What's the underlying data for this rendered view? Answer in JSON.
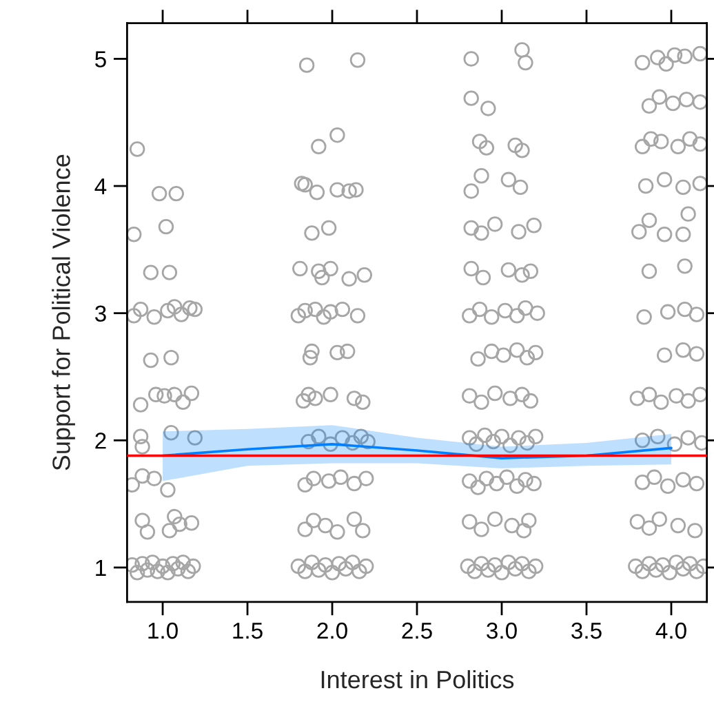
{
  "chart_data": {
    "type": "scatter",
    "xlabel": "Interest in Politics",
    "ylabel": "Support for Political Violence",
    "xlim": [
      0.79,
      4.21
    ],
    "ylim": [
      0.73,
      5.28
    ],
    "xticks": [
      {
        "value": 1,
        "label": "1.0"
      },
      {
        "value": 1.5,
        "label": "1.5"
      },
      {
        "value": 2,
        "label": "2.0"
      },
      {
        "value": 2.5,
        "label": "2.5"
      },
      {
        "value": 3,
        "label": "3.0"
      },
      {
        "value": 3.5,
        "label": "3.5"
      },
      {
        "value": 4,
        "label": "4.0"
      }
    ],
    "yticks": [
      1,
      2,
      3,
      4,
      5
    ],
    "grid": false,
    "legend": false,
    "ref_lines": [
      {
        "axis": "y",
        "value": 1.88,
        "color": "#ff0000"
      }
    ],
    "series": [
      {
        "marker": "circle",
        "color": "#a6a6a6",
        "x": [
          0.85,
          0.98,
          1.08,
          0.83,
          1.02,
          0.93,
          1.04,
          0.83,
          0.87,
          0.95,
          1.03,
          1.07,
          1.11,
          1.16,
          1.19,
          0.93,
          1.05,
          0.87,
          0.96,
          1.01,
          1.07,
          1.12,
          1.17,
          0.87,
          0.88,
          1.05,
          1.19,
          0.82,
          0.88,
          0.95,
          1.03,
          0.88,
          0.91,
          1.07,
          1.17,
          1.04,
          1.1,
          0.82,
          0.85,
          0.88,
          0.91,
          0.94,
          0.97,
          1.0,
          1.03,
          1.06,
          1.09,
          1.12,
          1.15,
          1.18,
          1.85,
          2.15,
          1.92,
          2.03,
          1.82,
          1.84,
          1.91,
          2.03,
          2.1,
          2.14,
          1.88,
          1.98,
          1.81,
          1.92,
          1.94,
          1.99,
          2.1,
          2.19,
          1.8,
          1.84,
          1.9,
          1.95,
          1.99,
          2.06,
          2.15,
          1.87,
          1.88,
          2.03,
          2.09,
          1.83,
          1.86,
          1.9,
          1.99,
          2.13,
          2.18,
          1.86,
          1.92,
          1.99,
          2.06,
          2.12,
          2.17,
          2.21,
          1.84,
          1.89,
          1.98,
          2.05,
          2.13,
          2.2,
          1.84,
          1.89,
          1.96,
          2.03,
          2.13,
          2.18,
          1.8,
          1.84,
          1.88,
          1.92,
          1.96,
          2.0,
          2.04,
          2.08,
          2.12,
          2.16,
          2.2,
          2.82,
          3.12,
          3.14,
          2.82,
          2.92,
          2.87,
          2.91,
          3.08,
          3.12,
          2.82,
          2.88,
          3.04,
          3.11,
          2.82,
          2.88,
          2.96,
          3.1,
          3.19,
          2.82,
          2.89,
          3.04,
          3.12,
          3.17,
          2.81,
          2.87,
          2.94,
          3.02,
          3.09,
          3.14,
          3.21,
          2.86,
          2.94,
          3.01,
          3.09,
          3.15,
          3.2,
          2.81,
          2.88,
          2.96,
          3.05,
          3.12,
          3.17,
          2.81,
          2.85,
          2.9,
          2.95,
          3.0,
          3.05,
          3.1,
          3.15,
          3.2,
          2.81,
          2.86,
          2.91,
          2.97,
          3.03,
          3.09,
          3.14,
          3.19,
          2.81,
          2.88,
          2.96,
          3.06,
          3.13,
          3.16,
          2.8,
          2.84,
          2.88,
          2.92,
          2.96,
          3.0,
          3.04,
          3.08,
          3.12,
          3.16,
          3.2,
          3.83,
          3.92,
          3.97,
          4.02,
          4.08,
          4.17,
          3.87,
          3.93,
          4.01,
          4.09,
          4.17,
          3.83,
          3.88,
          3.94,
          4.04,
          4.11,
          4.17,
          3.85,
          3.96,
          4.07,
          4.17,
          3.81,
          3.87,
          3.96,
          4.07,
          4.1,
          3.87,
          4.08,
          3.84,
          3.98,
          4.08,
          4.15,
          3.96,
          4.07,
          4.15,
          3.8,
          3.87,
          3.94,
          4.03,
          4.1,
          4.17,
          3.83,
          3.92,
          4.02,
          4.1,
          4.18,
          3.83,
          3.9,
          3.98,
          4.07,
          4.15,
          3.8,
          3.87,
          3.93,
          4.04,
          4.14,
          3.79,
          3.83,
          3.87,
          3.91,
          3.95,
          3.99,
          4.03,
          4.07,
          4.11,
          4.15,
          4.19
        ],
        "values": [
          4.29,
          3.94,
          3.94,
          3.62,
          3.68,
          3.32,
          3.32,
          2.98,
          3.03,
          2.97,
          3.02,
          3.05,
          2.99,
          3.04,
          3.03,
          2.63,
          2.65,
          2.28,
          2.36,
          2.35,
          2.36,
          2.3,
          2.37,
          2.03,
          1.95,
          2.06,
          2.02,
          1.65,
          1.72,
          1.7,
          1.61,
          1.37,
          1.28,
          1.4,
          1.35,
          1.29,
          1.34,
          1.02,
          0.96,
          1.03,
          0.98,
          1.04,
          0.97,
          1.01,
          0.96,
          1.03,
          0.99,
          1.04,
          0.97,
          1.01,
          4.95,
          4.99,
          4.31,
          4.4,
          4.02,
          4.01,
          3.95,
          3.97,
          3.96,
          3.97,
          3.63,
          3.67,
          3.35,
          3.33,
          3.28,
          3.35,
          3.27,
          3.3,
          2.98,
          3.02,
          3.03,
          2.97,
          3.01,
          3.03,
          2.98,
          2.65,
          2.7,
          2.69,
          2.7,
          2.31,
          2.36,
          2.33,
          2.36,
          2.33,
          2.3,
          1.99,
          2.03,
          1.97,
          2.02,
          1.98,
          2.03,
          1.99,
          1.65,
          1.7,
          1.68,
          1.71,
          1.66,
          1.7,
          1.3,
          1.37,
          1.33,
          1.28,
          1.38,
          1.29,
          1.01,
          0.97,
          1.04,
          0.98,
          1.02,
          0.96,
          1.03,
          0.99,
          1.04,
          0.97,
          1.01,
          5.0,
          5.07,
          4.97,
          4.69,
          4.61,
          4.35,
          4.3,
          4.32,
          4.28,
          3.96,
          4.08,
          4.05,
          3.99,
          3.67,
          3.63,
          3.7,
          3.64,
          3.69,
          3.35,
          3.28,
          3.34,
          3.3,
          3.33,
          2.98,
          3.03,
          2.97,
          3.02,
          2.98,
          3.04,
          3.0,
          2.64,
          2.7,
          2.67,
          2.71,
          2.65,
          2.69,
          2.35,
          2.3,
          2.37,
          2.33,
          2.36,
          2.31,
          2.02,
          1.97,
          2.04,
          1.99,
          2.03,
          1.96,
          2.02,
          1.98,
          2.03,
          1.68,
          1.63,
          1.7,
          1.66,
          1.71,
          1.64,
          1.69,
          1.66,
          1.36,
          1.3,
          1.38,
          1.33,
          1.29,
          1.37,
          1.01,
          0.97,
          1.03,
          0.98,
          1.02,
          0.96,
          1.04,
          0.99,
          1.03,
          0.97,
          1.01,
          4.97,
          5.01,
          4.96,
          5.03,
          5.02,
          5.04,
          4.63,
          4.7,
          4.65,
          4.68,
          4.66,
          4.31,
          4.37,
          4.35,
          4.31,
          4.37,
          4.33,
          4.0,
          4.05,
          3.99,
          4.02,
          3.64,
          3.73,
          3.62,
          3.62,
          3.78,
          3.33,
          3.37,
          2.97,
          3.01,
          3.03,
          2.99,
          2.67,
          2.71,
          2.68,
          2.33,
          2.36,
          2.3,
          2.35,
          2.31,
          2.36,
          2.0,
          2.03,
          1.97,
          2.02,
          1.98,
          1.67,
          1.71,
          1.64,
          1.69,
          1.66,
          1.36,
          1.31,
          1.38,
          1.33,
          1.29,
          1.01,
          0.97,
          1.03,
          0.98,
          1.02,
          0.96,
          1.04,
          0.99,
          1.03,
          0.97,
          1.01
        ]
      },
      {
        "type": "line",
        "color": "#0080ff",
        "marker": "none",
        "line_style": "solid",
        "x": [
          1,
          1.5,
          2,
          2.5,
          3,
          3.5,
          4
        ],
        "values": [
          1.88,
          1.93,
          1.97,
          1.92,
          1.86,
          1.88,
          1.94
        ],
        "lower": [
          1.68,
          1.8,
          1.82,
          1.82,
          1.78,
          1.8,
          1.81
        ],
        "upper": [
          2.07,
          2.09,
          2.12,
          2.02,
          1.95,
          1.98,
          2.05
        ]
      }
    ]
  }
}
